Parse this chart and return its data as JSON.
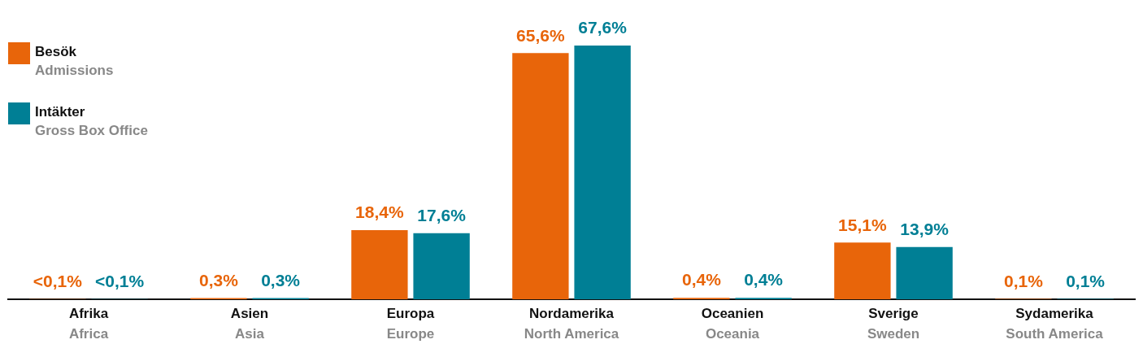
{
  "chart_data": {
    "type": "bar",
    "categories": [
      "Afrika\nAfrica",
      "Asien\nAsia",
      "Europa\nEurope",
      "Nordamerika\nNorth America",
      "Oceanien\nOceania",
      "Sverige\nSweden",
      "Sydamerika\nSouth America"
    ],
    "series": [
      {
        "name": "Besök\nAdmissions",
        "color": "#e8650a",
        "values": [
          0.05,
          0.3,
          18.4,
          65.6,
          0.4,
          15.1,
          0.1
        ],
        "value_labels": [
          "<0,1%",
          "0,3%",
          "18,4%",
          "65,6%",
          "0,4%",
          "15,1%",
          "0,1%"
        ]
      },
      {
        "name": "Intäkter\nGross Box Office",
        "color": "#007f95",
        "values": [
          0.05,
          0.3,
          17.6,
          67.6,
          0.4,
          13.9,
          0.1
        ],
        "value_labels": [
          "<0,1%",
          "0,3%",
          "17,6%",
          "67,6%",
          "0,4%",
          "13,9%",
          "0,1%"
        ]
      }
    ],
    "legend": "top left",
    "grid": false
  }
}
